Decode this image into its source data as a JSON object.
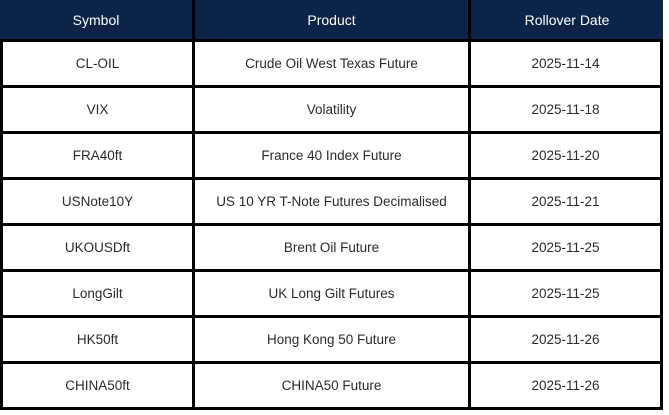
{
  "table": {
    "columns": [
      "Symbol",
      "Product",
      "Rollover Date"
    ],
    "rows": [
      [
        "CL-OIL",
        "Crude Oil West Texas Future",
        "2025-11-14"
      ],
      [
        "VIX",
        "Volatility",
        "2025-11-18"
      ],
      [
        "FRA40ft",
        "France 40 Index Future",
        "2025-11-20"
      ],
      [
        "USNote10Y",
        "US 10 YR T-Note Futures Decimalised",
        "2025-11-21"
      ],
      [
        "UKOUSDft",
        "Brent Oil Future",
        "2025-11-25"
      ],
      [
        "LongGilt",
        "UK Long Gilt Futures",
        "2025-11-25"
      ],
      [
        "HK50ft",
        "Hong Kong 50 Future",
        "2025-11-26"
      ],
      [
        "CHINA50ft",
        "CHINA50 Future",
        "2025-11-26"
      ]
    ],
    "colors": {
      "header_bg": "#0c2447",
      "header_text": "#ffffff",
      "border": "#000000",
      "body_text": "#2b2b2b",
      "row_bg": "#ffffff"
    }
  }
}
